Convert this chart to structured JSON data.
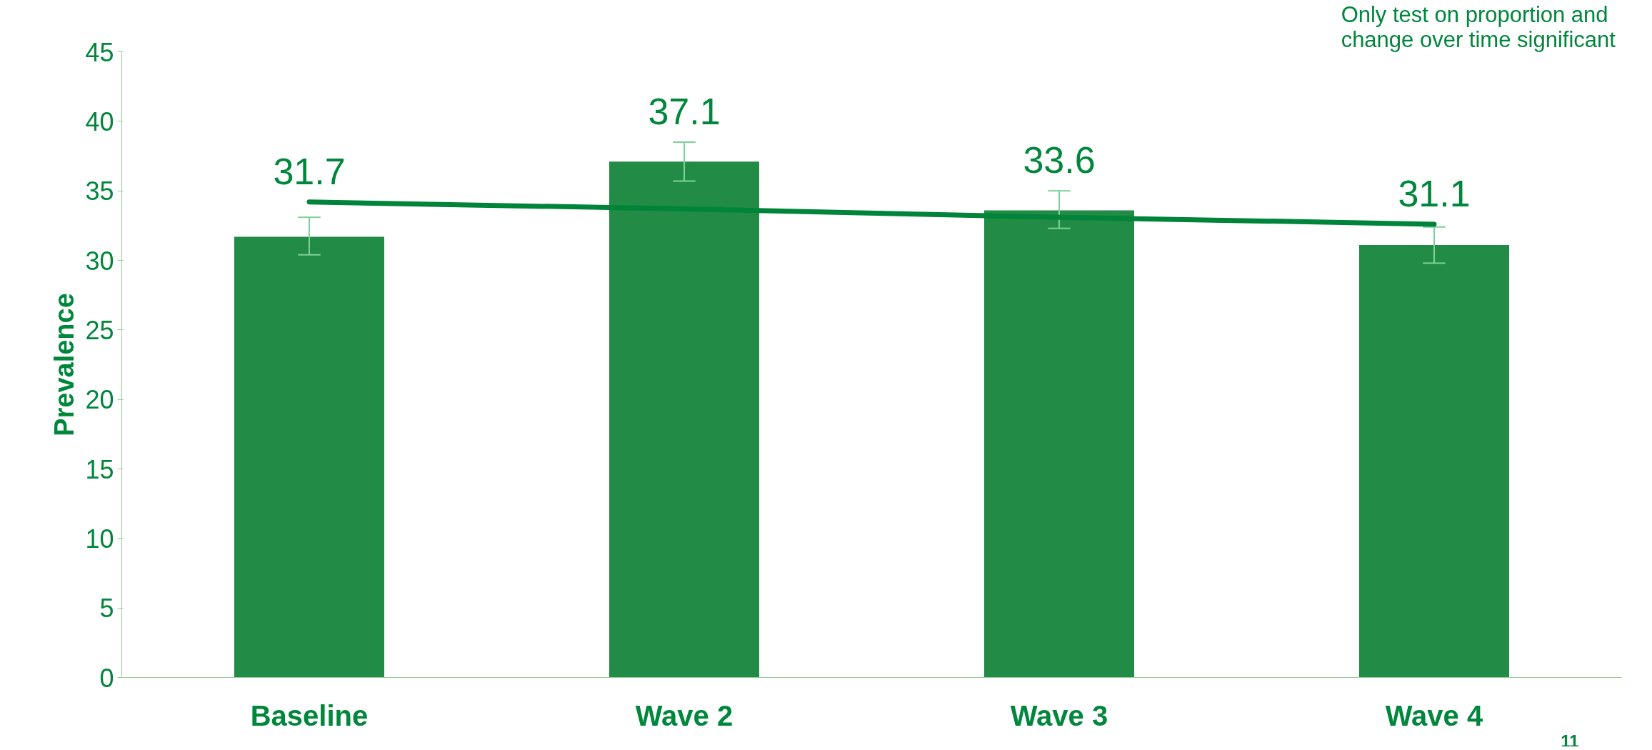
{
  "chart_data": {
    "type": "bar",
    "ylabel": "Prevalence",
    "categories": [
      "Baseline",
      "Wave 2",
      "Wave 3",
      "Wave 4"
    ],
    "series": [
      {
        "color": "#228b45",
        "values": [
          31.7,
          37.1,
          33.6,
          31.1
        ],
        "value_labels": [
          "31.7",
          "37.1",
          "33.6",
          "31.1"
        ],
        "errors": [
          [
            30.4,
            33.1
          ],
          [
            35.7,
            38.5
          ],
          [
            32.3,
            35.0
          ],
          [
            29.8,
            32.4
          ]
        ]
      },
      {
        "type": "line",
        "color": "#00843a",
        "values": [
          34.2,
          33.7,
          33.1,
          32.6
        ]
      }
    ],
    "ylim": [
      0,
      45
    ],
    "yticks": [
      0,
      5,
      10,
      15,
      20,
      25,
      30,
      35,
      40,
      45
    ],
    "grid": false,
    "annotations": [
      "Only test on proportion and\nchange over time  significant",
      "11"
    ]
  }
}
